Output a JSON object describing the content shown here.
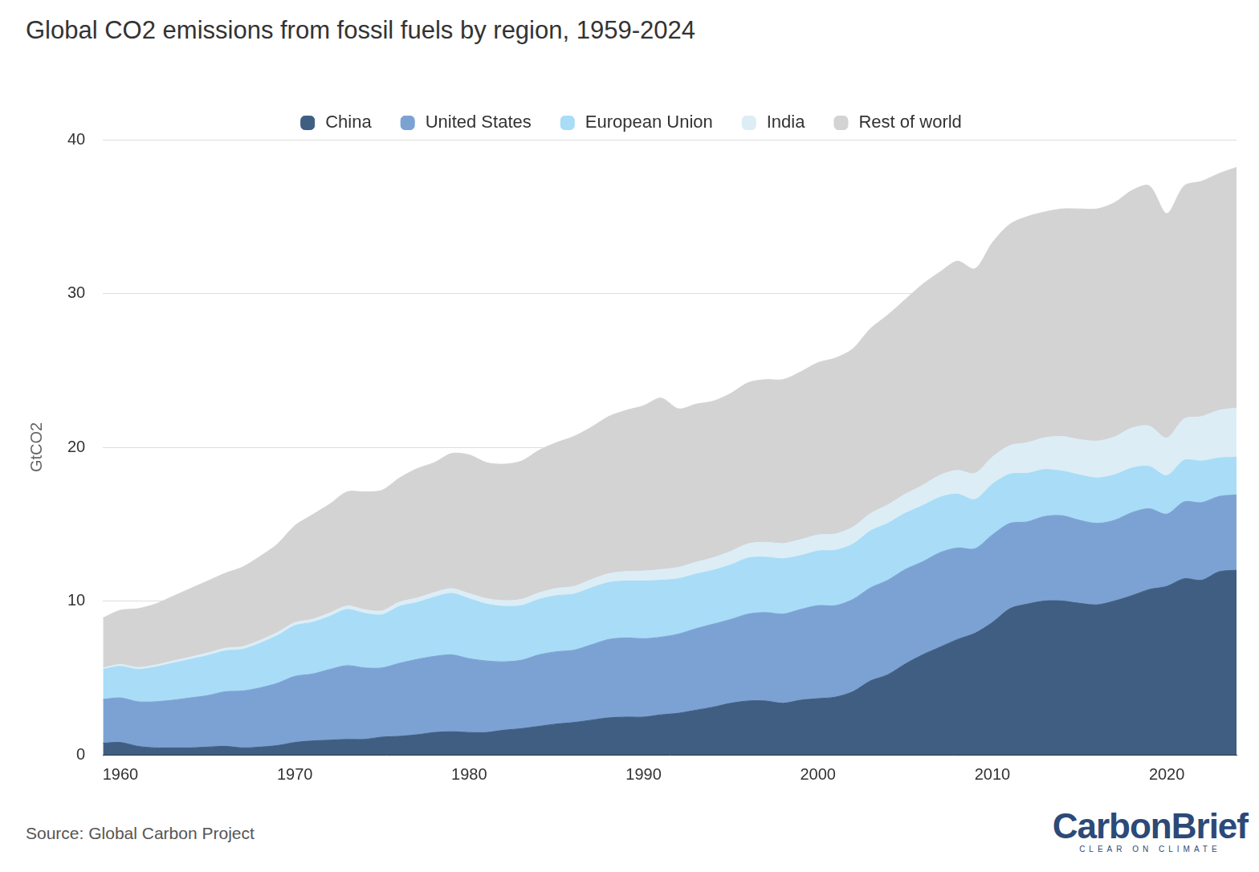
{
  "chart_data": {
    "type": "area",
    "stacked": true,
    "title": "Global CO2 emissions from fossil fuels by region, 1959-2024",
    "y_label": "GtCO2",
    "source": "Source: Global Carbon Project",
    "logo": "CarbonBrief",
    "logo_tagline": "CLEAR ON CLIMATE",
    "legend": "top",
    "grid": true,
    "x": [
      1959,
      1960,
      1961,
      1962,
      1963,
      1964,
      1965,
      1966,
      1967,
      1968,
      1969,
      1970,
      1971,
      1972,
      1973,
      1974,
      1975,
      1976,
      1977,
      1978,
      1979,
      1980,
      1981,
      1982,
      1983,
      1984,
      1985,
      1986,
      1987,
      1988,
      1989,
      1990,
      1991,
      1992,
      1993,
      1994,
      1995,
      1996,
      1997,
      1998,
      1999,
      2000,
      2001,
      2002,
      2003,
      2004,
      2005,
      2006,
      2007,
      2008,
      2009,
      2010,
      2011,
      2012,
      2013,
      2014,
      2015,
      2016,
      2017,
      2018,
      2019,
      2020,
      2021,
      2022,
      2023,
      2024
    ],
    "xlim": [
      1959,
      2024
    ],
    "xticks": [
      1960,
      1970,
      1980,
      1990,
      2000,
      2010,
      2020
    ],
    "ylim": [
      0,
      40
    ],
    "yticks": [
      0,
      10,
      20,
      30,
      40
    ],
    "series": [
      {
        "name": "China",
        "color": "#3f5e82",
        "values": [
          0.75,
          0.8,
          0.55,
          0.45,
          0.45,
          0.45,
          0.5,
          0.55,
          0.45,
          0.5,
          0.6,
          0.8,
          0.9,
          0.95,
          1.0,
          1.0,
          1.15,
          1.2,
          1.3,
          1.45,
          1.5,
          1.45,
          1.45,
          1.6,
          1.7,
          1.85,
          2.0,
          2.1,
          2.25,
          2.4,
          2.45,
          2.45,
          2.6,
          2.7,
          2.9,
          3.1,
          3.35,
          3.5,
          3.5,
          3.35,
          3.55,
          3.65,
          3.75,
          4.1,
          4.8,
          5.2,
          5.9,
          6.5,
          7.0,
          7.5,
          7.9,
          8.6,
          9.5,
          9.8,
          10.0,
          10.0,
          9.85,
          9.75,
          10.0,
          10.35,
          10.75,
          10.95,
          11.45,
          11.35,
          11.9,
          12.0
        ]
      },
      {
        "name": "United States",
        "color": "#7ca2d3",
        "values": [
          2.85,
          2.9,
          2.9,
          3.0,
          3.1,
          3.25,
          3.35,
          3.55,
          3.7,
          3.85,
          4.05,
          4.3,
          4.35,
          4.6,
          4.8,
          4.65,
          4.5,
          4.75,
          4.9,
          4.95,
          5.0,
          4.8,
          4.65,
          4.45,
          4.45,
          4.65,
          4.7,
          4.7,
          4.9,
          5.1,
          5.15,
          5.1,
          5.05,
          5.15,
          5.3,
          5.4,
          5.45,
          5.65,
          5.75,
          5.8,
          5.9,
          6.05,
          5.95,
          6.0,
          6.05,
          6.15,
          6.15,
          6.05,
          6.15,
          5.95,
          5.5,
          5.7,
          5.55,
          5.35,
          5.5,
          5.55,
          5.4,
          5.3,
          5.25,
          5.4,
          5.25,
          4.7,
          5.0,
          5.05,
          4.9,
          4.9
        ]
      },
      {
        "name": "European Union",
        "color": "#a8dcf7",
        "values": [
          1.95,
          2.05,
          2.1,
          2.25,
          2.4,
          2.5,
          2.6,
          2.65,
          2.7,
          2.9,
          3.1,
          3.3,
          3.35,
          3.45,
          3.65,
          3.55,
          3.45,
          3.7,
          3.7,
          3.85,
          4.0,
          3.9,
          3.7,
          3.6,
          3.55,
          3.6,
          3.65,
          3.65,
          3.7,
          3.7,
          3.7,
          3.75,
          3.7,
          3.6,
          3.55,
          3.5,
          3.55,
          3.65,
          3.6,
          3.6,
          3.5,
          3.55,
          3.6,
          3.6,
          3.7,
          3.7,
          3.65,
          3.65,
          3.6,
          3.5,
          3.2,
          3.3,
          3.2,
          3.15,
          3.05,
          2.9,
          2.95,
          2.95,
          2.95,
          2.9,
          2.75,
          2.5,
          2.7,
          2.7,
          2.5,
          2.45
        ]
      },
      {
        "name": "India",
        "color": "#dcedf6",
        "values": [
          0.1,
          0.12,
          0.13,
          0.14,
          0.15,
          0.15,
          0.17,
          0.18,
          0.18,
          0.19,
          0.2,
          0.2,
          0.21,
          0.22,
          0.23,
          0.24,
          0.26,
          0.28,
          0.29,
          0.3,
          0.31,
          0.33,
          0.36,
          0.38,
          0.41,
          0.43,
          0.47,
          0.5,
          0.54,
          0.58,
          0.62,
          0.65,
          0.7,
          0.74,
          0.77,
          0.82,
          0.88,
          0.92,
          0.97,
          0.99,
          1.04,
          1.05,
          1.06,
          1.1,
          1.13,
          1.2,
          1.25,
          1.32,
          1.43,
          1.55,
          1.7,
          1.76,
          1.86,
          2.0,
          2.07,
          2.25,
          2.3,
          2.4,
          2.47,
          2.6,
          2.63,
          2.45,
          2.7,
          2.9,
          3.1,
          3.2
        ]
      },
      {
        "name": "Rest of world",
        "color": "#d3d3d3",
        "values": [
          3.25,
          3.53,
          3.82,
          3.96,
          4.2,
          4.45,
          4.68,
          4.87,
          5.17,
          5.46,
          5.75,
          6.3,
          6.79,
          7.08,
          7.42,
          7.66,
          7.84,
          8.07,
          8.41,
          8.45,
          8.79,
          9.02,
          8.84,
          8.87,
          8.99,
          9.27,
          9.48,
          9.75,
          9.91,
          10.22,
          10.48,
          10.75,
          11.15,
          10.31,
          10.28,
          10.18,
          10.27,
          10.48,
          10.58,
          10.66,
          10.91,
          11.2,
          11.44,
          11.6,
          12.02,
          12.35,
          12.65,
          13.08,
          13.22,
          13.6,
          13.3,
          13.94,
          14.39,
          14.7,
          14.68,
          14.8,
          15.0,
          15.1,
          15.23,
          15.45,
          15.62,
          14.6,
          15.15,
          15.3,
          15.4,
          15.65
        ]
      }
    ]
  }
}
